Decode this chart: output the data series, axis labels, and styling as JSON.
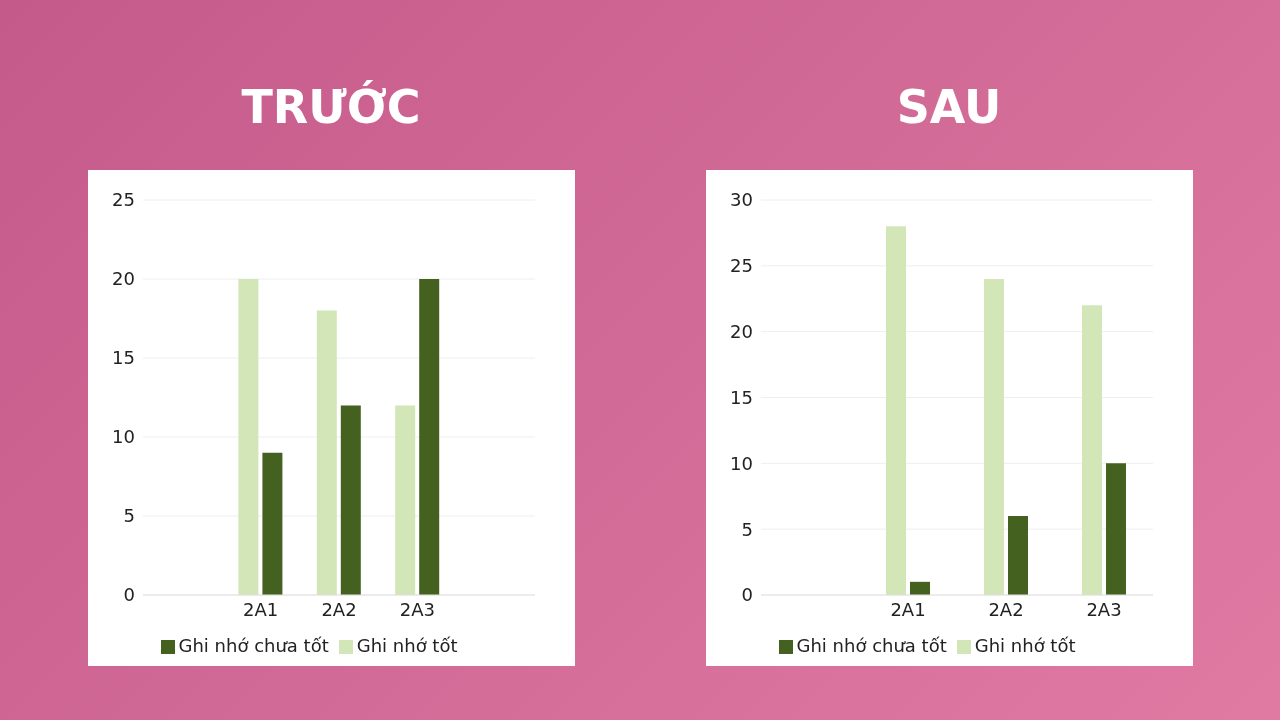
{
  "chart_data": [
    {
      "type": "bar",
      "title": "TRƯỚC",
      "categories": [
        null,
        "2A1",
        "2A2",
        "2A3",
        null
      ],
      "series": [
        {
          "name": "Ghi nhớ tốt",
          "color": "#d2e6b8",
          "values": [
            null,
            20,
            18,
            12,
            null
          ]
        },
        {
          "name": "Ghi nhớ chưa tốt",
          "color": "#44611f",
          "values": [
            null,
            9,
            12,
            20,
            null
          ]
        }
      ],
      "ylim": [
        0,
        25
      ],
      "yticks": [
        0,
        5,
        10,
        15,
        20,
        25
      ],
      "grid": "y",
      "legend": "bottom"
    },
    {
      "type": "bar",
      "title": "SAU",
      "categories": [
        null,
        "2A1",
        "2A2",
        "2A3"
      ],
      "series": [
        {
          "name": "Ghi nhớ tốt",
          "color": "#d2e6b8",
          "values": [
            null,
            28,
            24,
            22
          ]
        },
        {
          "name": "Ghi nhớ chưa tốt",
          "color": "#44611f",
          "values": [
            null,
            1,
            6,
            10
          ]
        }
      ],
      "ylim": [
        0,
        30
      ],
      "yticks": [
        0,
        5,
        10,
        15,
        20,
        25,
        30
      ],
      "grid": "y",
      "legend": "bottom"
    }
  ]
}
